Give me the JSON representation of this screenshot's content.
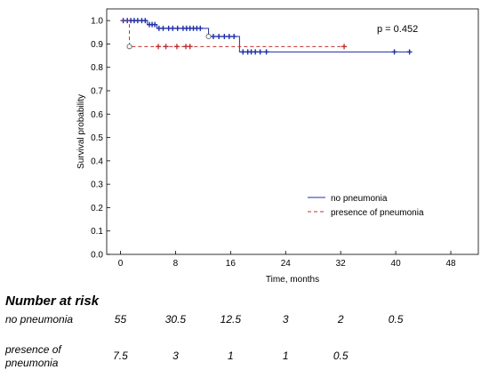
{
  "chart_data": {
    "type": "line",
    "subtype": "kaplan-meier",
    "xlabel": "Time, months",
    "ylabel": "Survival probability",
    "xlim": [
      -2,
      52
    ],
    "ylim": [
      0,
      1.05
    ],
    "x_ticks": [
      0,
      8,
      16,
      24,
      32,
      40,
      48
    ],
    "y_ticks": [
      0.0,
      0.1,
      0.2,
      0.3,
      0.4,
      0.5,
      0.6,
      0.7,
      0.8,
      0.9,
      1.0
    ],
    "grid": false,
    "legend_position": "center-right",
    "annotation": "p = 0.452",
    "series": [
      {
        "name": "no pneumonia",
        "color": "#1f2fa8",
        "line_style": "solid",
        "steps": [
          [
            0,
            1.0
          ],
          [
            3.9,
            0.983
          ],
          [
            5.3,
            0.967
          ],
          [
            12.8,
            0.932
          ],
          [
            17.3,
            0.866
          ],
          [
            42,
            0.866
          ]
        ],
        "events": [
          12.8
        ],
        "censored": [
          [
            0.4,
            1.0
          ],
          [
            1.0,
            1.0
          ],
          [
            1.5,
            1.0
          ],
          [
            2.0,
            1.0
          ],
          [
            2.5,
            1.0
          ],
          [
            3.1,
            1.0
          ],
          [
            3.6,
            1.0
          ],
          [
            4.2,
            0.983
          ],
          [
            4.6,
            0.983
          ],
          [
            5.0,
            0.983
          ],
          [
            5.6,
            0.967
          ],
          [
            6.2,
            0.967
          ],
          [
            7.0,
            0.967
          ],
          [
            7.6,
            0.967
          ],
          [
            8.3,
            0.967
          ],
          [
            9.1,
            0.967
          ],
          [
            9.6,
            0.967
          ],
          [
            10.1,
            0.967
          ],
          [
            10.6,
            0.967
          ],
          [
            11.1,
            0.967
          ],
          [
            11.6,
            0.967
          ],
          [
            13.5,
            0.932
          ],
          [
            14.3,
            0.932
          ],
          [
            15.1,
            0.932
          ],
          [
            15.8,
            0.932
          ],
          [
            16.5,
            0.932
          ],
          [
            17.8,
            0.866
          ],
          [
            18.5,
            0.866
          ],
          [
            19.0,
            0.866
          ],
          [
            19.6,
            0.866
          ],
          [
            20.3,
            0.866
          ],
          [
            21.2,
            0.866
          ],
          [
            39.8,
            0.866
          ],
          [
            42.0,
            0.866
          ]
        ]
      },
      {
        "name": "presence of pneumonia",
        "color": "#c03030",
        "line_style": "dashed",
        "steps": [
          [
            0,
            1.0
          ],
          [
            1.3,
            0.889
          ],
          [
            32.5,
            0.889
          ]
        ],
        "events": [
          1.3
        ],
        "censored": [
          [
            5.5,
            0.889
          ],
          [
            6.6,
            0.889
          ],
          [
            8.2,
            0.889
          ],
          [
            9.5,
            0.889
          ],
          [
            10.1,
            0.889
          ],
          [
            32.5,
            0.889
          ]
        ]
      }
    ]
  },
  "risk_table": {
    "title": "Number at risk",
    "times": [
      0,
      8,
      16,
      24,
      32,
      40
    ],
    "rows": [
      {
        "label_lines": [
          "no pneumonia"
        ],
        "values": [
          "55",
          "30.5",
          "12.5",
          "3",
          "2",
          "0.5"
        ]
      },
      {
        "label_lines": [
          "presence of",
          "pneumonia"
        ],
        "values": [
          "7.5",
          "3",
          "1",
          "1",
          "0.5",
          ""
        ]
      }
    ]
  }
}
